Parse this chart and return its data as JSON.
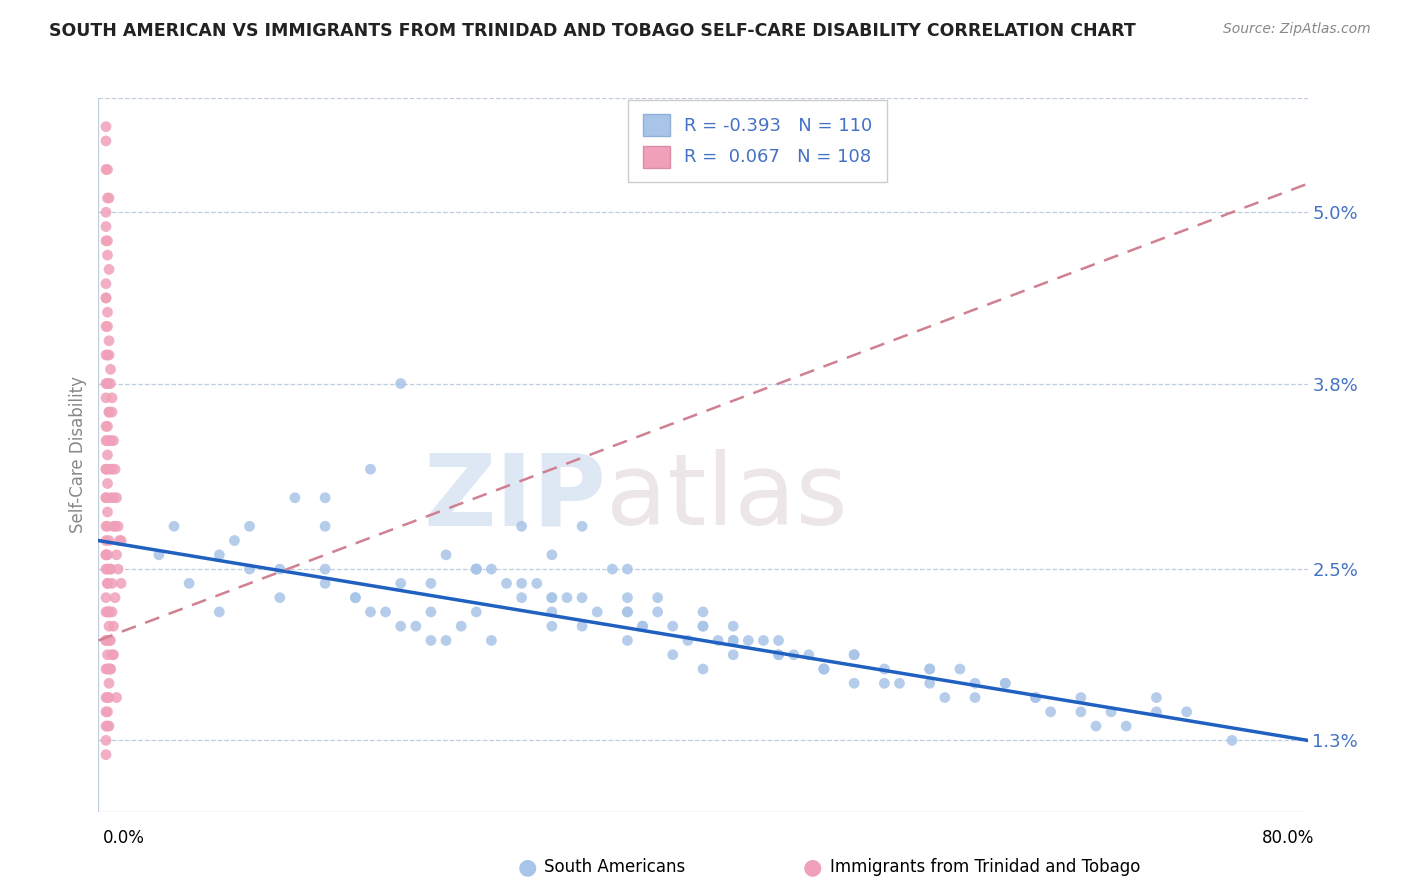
{
  "title": "SOUTH AMERICAN VS IMMIGRANTS FROM TRINIDAD AND TOBAGO SELF-CARE DISABILITY CORRELATION CHART",
  "source": "Source: ZipAtlas.com",
  "ylabel": "Self-Care Disability",
  "yticks": [
    0.013,
    0.025,
    0.038,
    0.05
  ],
  "ytick_labels": [
    "1.3%",
    "2.5%",
    "3.8%",
    "5.0%"
  ],
  "xlim": [
    0.0,
    0.8
  ],
  "ylim": [
    0.008,
    0.058
  ],
  "blue_R": "-0.393",
  "blue_N": "110",
  "pink_R": "0.067",
  "pink_N": "108",
  "blue_color": "#A8C4E8",
  "pink_color": "#F0A0B8",
  "blue_line_color": "#2060C0",
  "pink_line_color": "#D08090",
  "watermark_zip": "ZIP",
  "watermark_atlas": "atlas",
  "south_americans_label": "South Americans",
  "tt_label": "Immigrants from Trinidad and Tobago",
  "blue_trend_x0": 0.0,
  "blue_trend_y0": 0.027,
  "blue_trend_x1": 0.8,
  "blue_trend_y1": 0.013,
  "pink_trend_x0": 0.0,
  "pink_trend_y0": 0.02,
  "pink_trend_x1": 0.8,
  "pink_trend_y1": 0.052,
  "blue_scatter_x": [
    0.04,
    0.06,
    0.08,
    0.05,
    0.1,
    0.12,
    0.09,
    0.15,
    0.18,
    0.2,
    0.22,
    0.25,
    0.28,
    0.3,
    0.32,
    0.35,
    0.38,
    0.4,
    0.28,
    0.3,
    0.15,
    0.17,
    0.22,
    0.25,
    0.3,
    0.35,
    0.4,
    0.45,
    0.5,
    0.55,
    0.6,
    0.65,
    0.7,
    0.25,
    0.28,
    0.32,
    0.35,
    0.38,
    0.42,
    0.45,
    0.48,
    0.52,
    0.55,
    0.58,
    0.3,
    0.33,
    0.36,
    0.39,
    0.42,
    0.2,
    0.22,
    0.24,
    0.26,
    0.15,
    0.17,
    0.19,
    0.21,
    0.23,
    0.1,
    0.12,
    0.4,
    0.42,
    0.45,
    0.48,
    0.5,
    0.35,
    0.37,
    0.4,
    0.42,
    0.44,
    0.32,
    0.34,
    0.55,
    0.58,
    0.62,
    0.65,
    0.2,
    0.25,
    0.3,
    0.35,
    0.7,
    0.72,
    0.5,
    0.52,
    0.6,
    0.62,
    0.18,
    0.23,
    0.27,
    0.31,
    0.36,
    0.41,
    0.46,
    0.48,
    0.53,
    0.56,
    0.63,
    0.66,
    0.68,
    0.75,
    0.15,
    0.26,
    0.37,
    0.47,
    0.57,
    0.67,
    0.43,
    0.29,
    0.08,
    0.13
  ],
  "blue_scatter_y": [
    0.026,
    0.024,
    0.022,
    0.028,
    0.025,
    0.023,
    0.027,
    0.025,
    0.022,
    0.021,
    0.02,
    0.025,
    0.023,
    0.022,
    0.021,
    0.02,
    0.019,
    0.018,
    0.028,
    0.026,
    0.03,
    0.023,
    0.024,
    0.022,
    0.021,
    0.023,
    0.021,
    0.02,
    0.019,
    0.018,
    0.017,
    0.016,
    0.015,
    0.025,
    0.024,
    0.023,
    0.022,
    0.021,
    0.02,
    0.019,
    0.018,
    0.017,
    0.017,
    0.016,
    0.023,
    0.022,
    0.021,
    0.02,
    0.019,
    0.024,
    0.022,
    0.021,
    0.02,
    0.024,
    0.023,
    0.022,
    0.021,
    0.02,
    0.028,
    0.025,
    0.021,
    0.02,
    0.019,
    0.018,
    0.017,
    0.025,
    0.023,
    0.022,
    0.021,
    0.02,
    0.028,
    0.025,
    0.018,
    0.017,
    0.016,
    0.015,
    0.038,
    0.025,
    0.023,
    0.022,
    0.016,
    0.015,
    0.019,
    0.018,
    0.017,
    0.016,
    0.032,
    0.026,
    0.024,
    0.023,
    0.021,
    0.02,
    0.019,
    0.018,
    0.017,
    0.016,
    0.015,
    0.014,
    0.014,
    0.013,
    0.028,
    0.025,
    0.022,
    0.019,
    0.018,
    0.015,
    0.02,
    0.024,
    0.026,
    0.03
  ],
  "pink_scatter_x": [
    0.005,
    0.005,
    0.005,
    0.005,
    0.005,
    0.006,
    0.006,
    0.006,
    0.007,
    0.007,
    0.007,
    0.008,
    0.008,
    0.008,
    0.009,
    0.009,
    0.01,
    0.01,
    0.01,
    0.011,
    0.011,
    0.012,
    0.012,
    0.013,
    0.013,
    0.014,
    0.015,
    0.015,
    0.005,
    0.005,
    0.006,
    0.006,
    0.007,
    0.007,
    0.008,
    0.008,
    0.009,
    0.009,
    0.01,
    0.011,
    0.005,
    0.005,
    0.006,
    0.006,
    0.007,
    0.007,
    0.008,
    0.009,
    0.01,
    0.005,
    0.006,
    0.007,
    0.005,
    0.005,
    0.006,
    0.006,
    0.007,
    0.005,
    0.005,
    0.006,
    0.005,
    0.005,
    0.005,
    0.006,
    0.006,
    0.007,
    0.007,
    0.008,
    0.005,
    0.005,
    0.005,
    0.006,
    0.006,
    0.005,
    0.005,
    0.006,
    0.005,
    0.005,
    0.006,
    0.007,
    0.008,
    0.009,
    0.005,
    0.006,
    0.007,
    0.005,
    0.006,
    0.005,
    0.006,
    0.005,
    0.006,
    0.007,
    0.005,
    0.005,
    0.006,
    0.006,
    0.007,
    0.008,
    0.005,
    0.005,
    0.006,
    0.005,
    0.006,
    0.007,
    0.005,
    0.008,
    0.007,
    0.012
  ],
  "pink_scatter_y": [
    0.048,
    0.044,
    0.038,
    0.034,
    0.055,
    0.042,
    0.038,
    0.034,
    0.04,
    0.036,
    0.032,
    0.038,
    0.034,
    0.03,
    0.036,
    0.032,
    0.034,
    0.03,
    0.028,
    0.032,
    0.028,
    0.03,
    0.026,
    0.028,
    0.025,
    0.027,
    0.027,
    0.024,
    0.026,
    0.022,
    0.029,
    0.025,
    0.022,
    0.027,
    0.025,
    0.025,
    0.022,
    0.024,
    0.021,
    0.023,
    0.02,
    0.018,
    0.022,
    0.019,
    0.021,
    0.018,
    0.02,
    0.019,
    0.019,
    0.016,
    0.018,
    0.016,
    0.015,
    0.014,
    0.016,
    0.015,
    0.014,
    0.013,
    0.012,
    0.014,
    0.025,
    0.023,
    0.028,
    0.026,
    0.024,
    0.022,
    0.02,
    0.018,
    0.03,
    0.027,
    0.035,
    0.033,
    0.031,
    0.04,
    0.037,
    0.035,
    0.032,
    0.045,
    0.043,
    0.041,
    0.039,
    0.037,
    0.05,
    0.048,
    0.046,
    0.053,
    0.051,
    0.049,
    0.047,
    0.056,
    0.053,
    0.051,
    0.044,
    0.042,
    0.04,
    0.038,
    0.036,
    0.034,
    0.032,
    0.03,
    0.028,
    0.026,
    0.024,
    0.022,
    0.02,
    0.018,
    0.017,
    0.016
  ]
}
